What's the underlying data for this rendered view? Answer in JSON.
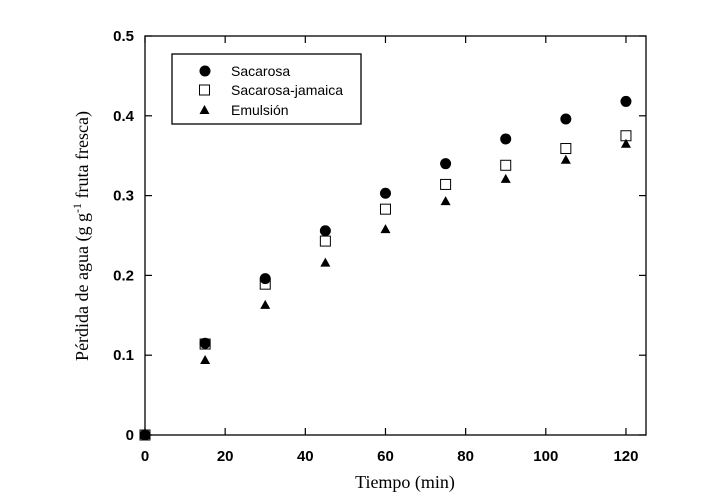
{
  "chart_data": {
    "type": "scatter",
    "title": "",
    "xlabel": "Tiempo (min)",
    "ylabel_main": "Pérdida de agua (g g",
    "ylabel_sup": "-1",
    "ylabel_tail": " fruta fresca)",
    "xlim": [
      0,
      125
    ],
    "ylim": [
      0,
      0.5
    ],
    "xticks": [
      0,
      20,
      40,
      60,
      80,
      100,
      120
    ],
    "yticks": [
      0,
      0.1,
      0.2,
      0.3,
      0.4,
      0.5
    ],
    "ytick_labels": [
      "0",
      "0.1",
      "0.2",
      "0.3",
      "0.4",
      "0.5"
    ],
    "grid": false,
    "legend_position": "top-left",
    "x": [
      0,
      15,
      30,
      45,
      60,
      75,
      90,
      105,
      120
    ],
    "series": [
      {
        "name": "Sacarosa",
        "marker": "filled-circle",
        "values": [
          0,
          0.115,
          0.196,
          0.256,
          0.303,
          0.34,
          0.371,
          0.396,
          0.418
        ]
      },
      {
        "name": "Sacarosa-jamaica",
        "marker": "open-square",
        "values": [
          0,
          0.114,
          0.189,
          0.243,
          0.283,
          0.314,
          0.338,
          0.359,
          0.375
        ]
      },
      {
        "name": "Emulsión",
        "marker": "filled-triangle",
        "values": [
          0,
          0.094,
          0.163,
          0.216,
          0.258,
          0.293,
          0.321,
          0.345,
          0.365
        ]
      }
    ]
  }
}
